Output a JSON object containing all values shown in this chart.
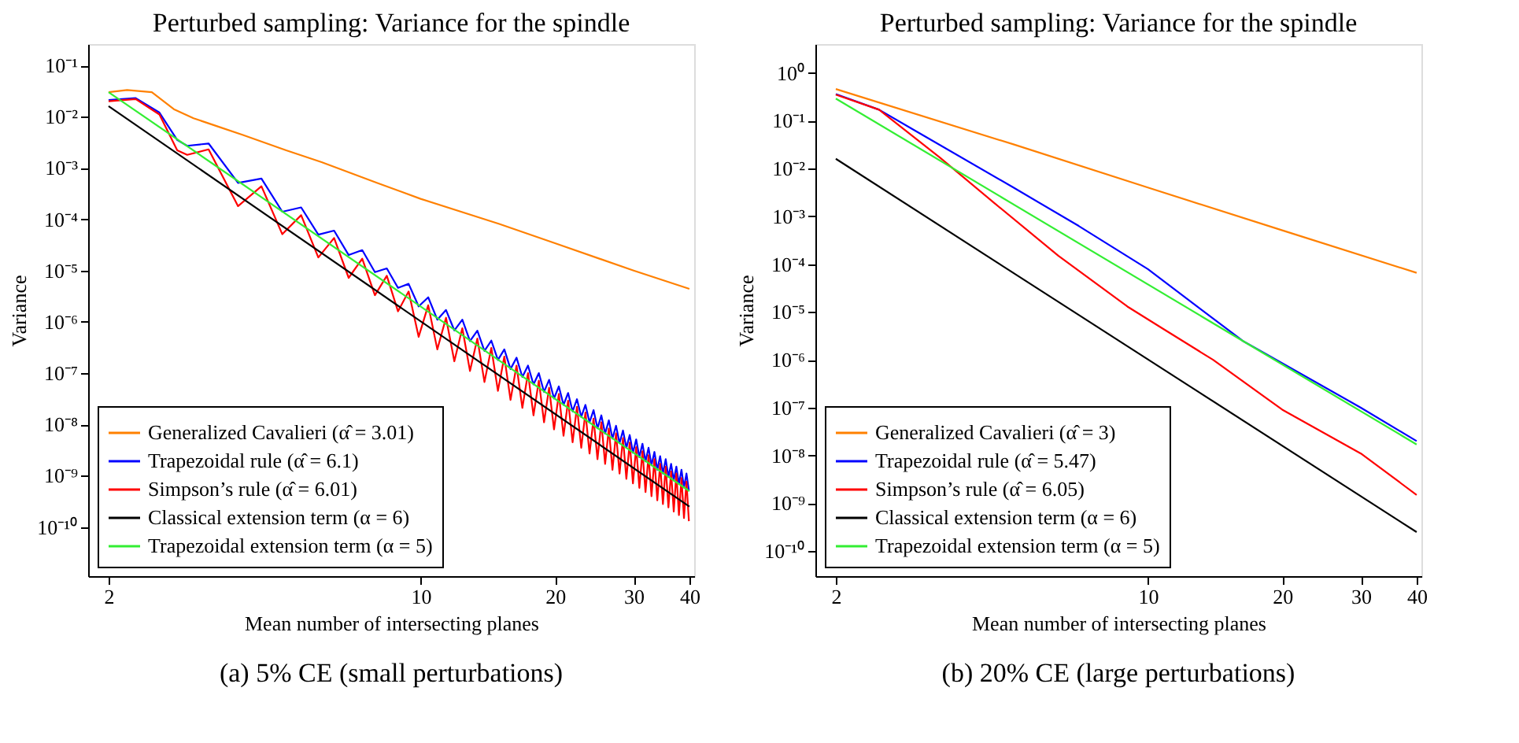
{
  "chart_data": [
    {
      "type": "line",
      "title": "Perturbed sampling: Variance for the spindle",
      "xlabel": "Mean number of intersecting planes",
      "ylabel": "Variance",
      "annotations": [
        "(a)  5% CE (small perturbations)"
      ],
      "log": "xy",
      "grid": false,
      "legend": "bottom left",
      "xlim": [
        1.8,
        41
      ],
      "ylim": [
        1.1e-11,
        0.26
      ],
      "xticks": [
        2,
        10,
        20,
        30,
        40
      ],
      "yticks": [
        {
          "value": 0.1,
          "label": "10⁻¹"
        },
        {
          "value": 0.01,
          "label": "10⁻²"
        },
        {
          "value": 0.001,
          "label": "10⁻³"
        },
        {
          "value": 0.0001,
          "label": "10⁻⁴"
        },
        {
          "value": 1e-05,
          "label": "10⁻⁵"
        },
        {
          "value": 1e-06,
          "label": "10⁻⁶"
        },
        {
          "value": 1e-07,
          "label": "10⁻⁷"
        },
        {
          "value": 1e-08,
          "label": "10⁻⁸"
        },
        {
          "value": 1e-09,
          "label": "10⁻⁹"
        },
        {
          "value": 1e-10,
          "label": "10⁻¹⁰"
        }
      ],
      "series": [
        {
          "name": "Generalized Cavalieri (α̂ = 3.01)",
          "color": "#ff8000",
          "x": [
            2,
            2.2,
            2.5,
            2.8,
            3.1,
            3.5,
            4,
            5,
            6,
            8,
            10,
            15,
            20,
            30,
            40
          ],
          "values": [
            0.03,
            0.033,
            0.03,
            0.014,
            0.0093,
            0.0065,
            0.0044,
            0.0022,
            0.0013,
            0.00051,
            0.00025,
            8.1e-05,
            3.4e-05,
            1e-05,
            4.4e-06
          ]
        },
        {
          "name": "Trapezoidal rule (α̂ = 6.1)",
          "color": "#0000ff",
          "x": [
            2,
            2.3,
            2.6,
            2.85,
            3.0,
            3.35,
            3.9,
            4.4,
            4.9,
            5.4,
            5.9,
            6.4,
            6.9,
            7.4,
            7.9,
            8.4,
            8.9,
            9.4,
            9.9,
            10.4,
            10.9,
            11.4,
            11.9,
            12.4,
            12.9,
            13.4,
            13.9,
            14.4,
            14.9,
            15.4,
            15.9,
            16.4,
            16.9,
            17.4,
            17.9,
            18.4,
            18.9,
            19.4,
            19.9,
            20.4,
            20.9,
            21.4,
            21.9,
            22.4,
            22.9,
            23.4,
            23.9,
            24.4,
            24.9,
            25.4,
            25.9,
            26.4,
            26.9,
            27.4,
            27.9,
            28.4,
            28.9,
            29.4,
            29.9,
            30.4,
            30.9,
            31.4,
            31.9,
            32.4,
            32.9,
            33.4,
            33.9,
            34.4,
            34.9,
            35.4,
            35.9,
            36.4,
            36.9,
            37.4,
            37.9,
            38.4,
            38.9,
            39.4,
            39.9
          ],
          "values": [
            0.021,
            0.023,
            0.012,
            0.0035,
            0.0027,
            0.003,
            0.00051,
            0.00062,
            0.00014,
            0.00017,
            5e-05,
            6e-05,
            2e-05,
            2.5e-05,
            9.3e-06,
            1.1e-05,
            4.6e-06,
            5.5e-06,
            2e-06,
            3e-06,
            1.1e-06,
            1.7e-06,
            6.8e-07,
            1.1e-06,
            4.2e-07,
            6.7e-07,
            2.7e-07,
            4.3e-07,
            1.8e-07,
            2.9e-07,
            1.2e-07,
            2e-07,
            8.4e-08,
            1.4e-07,
            6e-08,
            1e-07,
            4.3e-08,
            7.4e-08,
            3.2e-08,
            5.5e-08,
            2.4e-08,
            4.1e-08,
            1.8e-08,
            3.1e-08,
            1.4e-08,
            2.4e-08,
            1.1e-08,
            1.9e-08,
            8.4e-09,
            1.5e-08,
            6.6e-09,
            1.2e-08,
            5.3e-09,
            9.4e-09,
            4.3e-09,
            7.6e-09,
            3.5e-09,
            6.2e-09,
            2.8e-09,
            5.1e-09,
            2.3e-09,
            4.2e-09,
            1.9e-09,
            3.5e-09,
            1.6e-09,
            2.9e-09,
            1.3e-09,
            2.4e-09,
            1.1e-09,
            2.1e-09,
            9.5e-10,
            1.7e-09,
            8.1e-10,
            1.5e-09,
            6.9e-10,
            1.3e-09,
            5.9e-10,
            1.1e-09,
            5.1e-10
          ]
        },
        {
          "name": "Simpson’s rule (α̂ = 6.01)",
          "color": "#ff0000",
          "x": [
            2,
            2.3,
            2.6,
            2.85,
            3.0,
            3.35,
            3.9,
            4.4,
            4.9,
            5.4,
            5.9,
            6.4,
            6.9,
            7.4,
            7.9,
            8.4,
            8.9,
            9.4,
            9.9,
            10.4,
            10.9,
            11.4,
            11.9,
            12.4,
            12.9,
            13.4,
            13.9,
            14.4,
            14.9,
            15.4,
            15.9,
            16.4,
            16.9,
            17.4,
            17.9,
            18.4,
            18.9,
            19.4,
            19.9,
            20.4,
            20.9,
            21.4,
            21.9,
            22.4,
            22.9,
            23.4,
            23.9,
            24.4,
            24.9,
            25.4,
            25.9,
            26.4,
            26.9,
            27.4,
            27.9,
            28.4,
            28.9,
            29.4,
            29.9,
            30.4,
            30.9,
            31.4,
            31.9,
            32.4,
            32.9,
            33.4,
            33.9,
            34.4,
            34.9,
            35.4,
            35.9,
            36.4,
            36.9,
            37.4,
            37.9,
            38.4,
            38.9,
            39.4,
            39.9
          ],
          "values": [
            0.02,
            0.022,
            0.011,
            0.0022,
            0.0018,
            0.0023,
            0.00018,
            0.00044,
            5.1e-05,
            0.00012,
            1.8e-05,
            4.3e-05,
            7.2e-06,
            1.7e-05,
            3.3e-06,
            7.9e-06,
            1.6e-06,
            3.9e-06,
            5.1e-07,
            2.1e-06,
            2.9e-07,
            1.2e-06,
            1.7e-07,
            7.5e-07,
            1.1e-07,
            4.7e-07,
            6.7e-08,
            3.1e-07,
            4.5e-08,
            2.1e-07,
            3e-08,
            1.4e-07,
            2.1e-08,
            1e-07,
            1.5e-08,
            7.1e-08,
            1.1e-08,
            5.2e-08,
            8e-09,
            3.9e-08,
            6e-09,
            2.9e-08,
            4.5e-09,
            2.2e-08,
            3.5e-09,
            1.7e-08,
            2.7e-09,
            1.3e-08,
            2.1e-09,
            1.1e-08,
            1.7e-09,
            8.3e-09,
            1.3e-09,
            6.7e-09,
            1.1e-09,
            5.4e-09,
            8.7e-10,
            4.4e-09,
            7.1e-10,
            3.6e-09,
            5.8e-10,
            3e-09,
            4.8e-10,
            2.5e-09,
            4e-10,
            2.1e-09,
            3.3e-10,
            1.7e-09,
            2.8e-10,
            1.5e-09,
            2.4e-10,
            1.2e-09,
            2e-10,
            1.1e-09,
            1.7e-10,
            9e-10,
            1.5e-10,
            7.7e-10,
            1.3e-10
          ]
        },
        {
          "name": "Classical extension term (α = 6)",
          "color": "#000000",
          "x": [
            2,
            40
          ],
          "values": [
            0.016,
            2.5e-10
          ]
        },
        {
          "name": "Trapezoidal extension term (α = 5)",
          "color": "#33ee33",
          "x": [
            2,
            40
          ],
          "values": [
            0.03,
            5e-10
          ]
        }
      ]
    },
    {
      "type": "line",
      "title": "Perturbed sampling: Variance for the spindle",
      "xlabel": "Mean number of intersecting planes",
      "ylabel": "Variance",
      "annotations": [
        "(b)  20% CE (large perturbations)"
      ],
      "log": "xy",
      "grid": false,
      "legend": "bottom left",
      "xlim": [
        1.8,
        41
      ],
      "ylim": [
        3e-11,
        4
      ],
      "xticks": [
        2,
        10,
        20,
        30,
        40
      ],
      "yticks": [
        {
          "value": 1,
          "label": "10⁰"
        },
        {
          "value": 0.1,
          "label": "10⁻¹"
        },
        {
          "value": 0.01,
          "label": "10⁻²"
        },
        {
          "value": 0.001,
          "label": "10⁻³"
        },
        {
          "value": 0.0001,
          "label": "10⁻⁴"
        },
        {
          "value": 1e-05,
          "label": "10⁻⁵"
        },
        {
          "value": 1e-06,
          "label": "10⁻⁶"
        },
        {
          "value": 1e-07,
          "label": "10⁻⁷"
        },
        {
          "value": 1e-08,
          "label": "10⁻⁸"
        },
        {
          "value": 1e-09,
          "label": "10⁻⁹"
        },
        {
          "value": 1e-10,
          "label": "10⁻¹⁰"
        }
      ],
      "series": [
        {
          "name": "Generalized Cavalieri (α̂ = 3)",
          "color": "#ff8000",
          "x": [
            2,
            5,
            10,
            20,
            40
          ],
          "values": [
            0.46,
            0.032,
            0.004,
            0.00051,
            6.6e-05
          ]
        },
        {
          "name": "Trapezoidal rule (α̂ = 5.47)",
          "color": "#0000ff",
          "x": [
            2,
            2.5,
            3,
            5,
            7,
            10,
            16.3,
            20,
            30,
            40
          ],
          "values": [
            0.36,
            0.17,
            0.063,
            0.004,
            0.00063,
            7.9e-05,
            2.5e-06,
            8.5e-07,
            1e-07,
            2e-08
          ]
        },
        {
          "name": "Simpson’s rule (α̂ = 6.05)",
          "color": "#ff0000",
          "x": [
            2,
            2.5,
            3.42,
            4.5,
            6.3,
            9,
            10.8,
            14,
            20,
            30,
            40
          ],
          "values": [
            0.35,
            0.17,
            0.017,
            0.002,
            0.00015,
            1.3e-05,
            4.5e-06,
            1e-06,
            9.1e-08,
            1.1e-08,
            1.5e-09
          ]
        },
        {
          "name": "Classical extension term (α = 6)",
          "color": "#000000",
          "x": [
            2,
            40
          ],
          "values": [
            0.016,
            2.5e-10
          ]
        },
        {
          "name": "Trapezoidal extension term (α = 5)",
          "color": "#33ee33",
          "x": [
            2,
            40
          ],
          "values": [
            0.29,
            1.7e-08
          ]
        }
      ]
    }
  ]
}
